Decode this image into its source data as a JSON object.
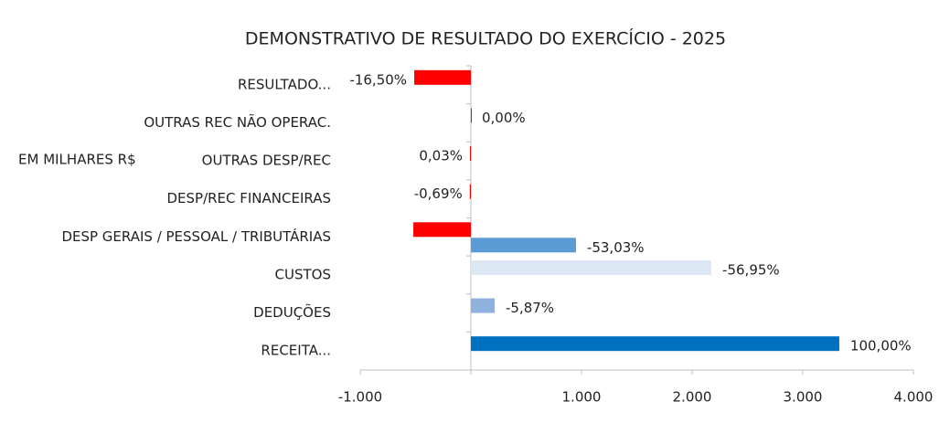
{
  "chart_data": {
    "type": "hbar",
    "title": "DEMONSTRATIVO DE RESULTADO DO EXERCÍCIO - 2025",
    "y_axis_label": "EM MILHARES R$",
    "categories": [
      "RESULTADO...",
      "OUTRAS REC NÃO OPERAC.",
      "OUTRAS DESP/REC",
      "DESP/REC FINANCEIRAS",
      "DESP GERAIS / PESSOAL / TRIBUTÁRIAS",
      "CUSTOS",
      "DEDUÇÕES",
      "RECEITA..."
    ],
    "series": [
      {
        "values": [
          -512,
          0,
          -8,
          -10,
          -520,
          2174,
          215,
          3330
        ],
        "colors": [
          "#ff0000",
          "#ff0000",
          "#ff0000",
          "#ff0000",
          "#ff0000",
          "#dde8f5",
          "#8fb1de",
          "#0070c0"
        ],
        "data_labels": [
          "-16,50%",
          "0,00%",
          "0,03%",
          "-0,69%",
          null,
          "-56,95%",
          "-5,87%",
          "100,00%"
        ]
      },
      {
        "values": [
          null,
          null,
          null,
          null,
          950,
          null,
          null,
          null
        ],
        "colors": [
          null,
          null,
          null,
          null,
          "#5b9bd5",
          null,
          null,
          null
        ],
        "data_labels": [
          null,
          null,
          null,
          null,
          "-53,03%",
          null,
          null,
          null
        ]
      }
    ],
    "xlim": [
      -1000,
      4000
    ],
    "xticks": [
      {
        "value": -1000,
        "label": "-1.000"
      },
      {
        "value": 1000,
        "label": "1.000"
      },
      {
        "value": 2000,
        "label": "2.000"
      },
      {
        "value": 3000,
        "label": "3.000"
      },
      {
        "value": 4000,
        "label": "4.000"
      }
    ]
  }
}
